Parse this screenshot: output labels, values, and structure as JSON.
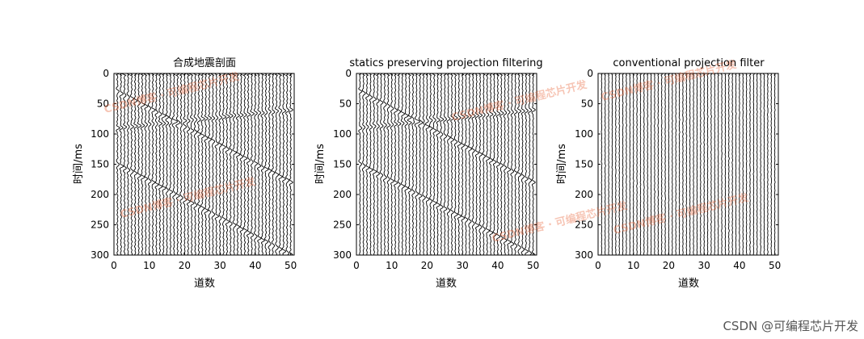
{
  "chart_data": [
    {
      "type": "wiggle-seismic-section",
      "title": "合成地震剖面",
      "xlabel": "道数",
      "ylabel": "时间/ms",
      "xlim": [
        0,
        51
      ],
      "ylim": [
        300,
        0
      ],
      "xticks": [
        "0",
        "10",
        "20",
        "30",
        "40",
        "50"
      ],
      "yticks": [
        "0",
        "50",
        "100",
        "150",
        "200",
        "250",
        "300"
      ],
      "num_traces": 50,
      "events": [
        {
          "x_start": 1,
          "t_start": 30,
          "x_end": 50,
          "t_end": 180,
          "amplitude": 1.0
        },
        {
          "x_start": 1,
          "t_start": 90,
          "x_end": 50,
          "t_end": 60,
          "amplitude": 1.0
        },
        {
          "x_start": 1,
          "t_start": 150,
          "x_end": 50,
          "t_end": 300,
          "amplitude": 1.0
        }
      ],
      "noise_level": 0.28
    },
    {
      "type": "wiggle-seismic-section",
      "title": "statics preserving projection filtering",
      "xlabel": "道数",
      "ylabel": "时间/ms",
      "xlim": [
        0,
        51
      ],
      "ylim": [
        300,
        0
      ],
      "xticks": [
        "0",
        "10",
        "20",
        "30",
        "40",
        "50"
      ],
      "yticks": [
        "0",
        "50",
        "100",
        "150",
        "200",
        "250",
        "300"
      ],
      "num_traces": 50,
      "events": [
        {
          "x_start": 1,
          "t_start": 30,
          "x_end": 50,
          "t_end": 180,
          "amplitude": 1.0
        },
        {
          "x_start": 1,
          "t_start": 90,
          "x_end": 50,
          "t_end": 60,
          "amplitude": 1.0
        },
        {
          "x_start": 1,
          "t_start": 150,
          "x_end": 50,
          "t_end": 300,
          "amplitude": 1.0
        }
      ],
      "noise_level": 0.22
    },
    {
      "type": "wiggle-seismic-section",
      "title": "conventional projection filter",
      "xlabel": "道数",
      "ylabel": "时间/ms",
      "xlim": [
        0,
        51
      ],
      "ylim": [
        300,
        0
      ],
      "xticks": [
        "0",
        "10",
        "20",
        "30",
        "40",
        "50"
      ],
      "yticks": [
        "0",
        "50",
        "100",
        "150",
        "200",
        "250",
        "300"
      ],
      "num_traces": 50,
      "events": [
        {
          "x_start": 1,
          "t_start": 30,
          "x_end": 50,
          "t_end": 180,
          "amplitude": 0.12
        },
        {
          "x_start": 1,
          "t_start": 90,
          "x_end": 50,
          "t_end": 60,
          "amplitude": 0.12
        },
        {
          "x_start": 1,
          "t_start": 150,
          "x_end": 50,
          "t_end": 300,
          "amplitude": 0.12
        }
      ],
      "noise_level": 0.12
    }
  ],
  "watermark": "CSDN @可编程芯片开发"
}
